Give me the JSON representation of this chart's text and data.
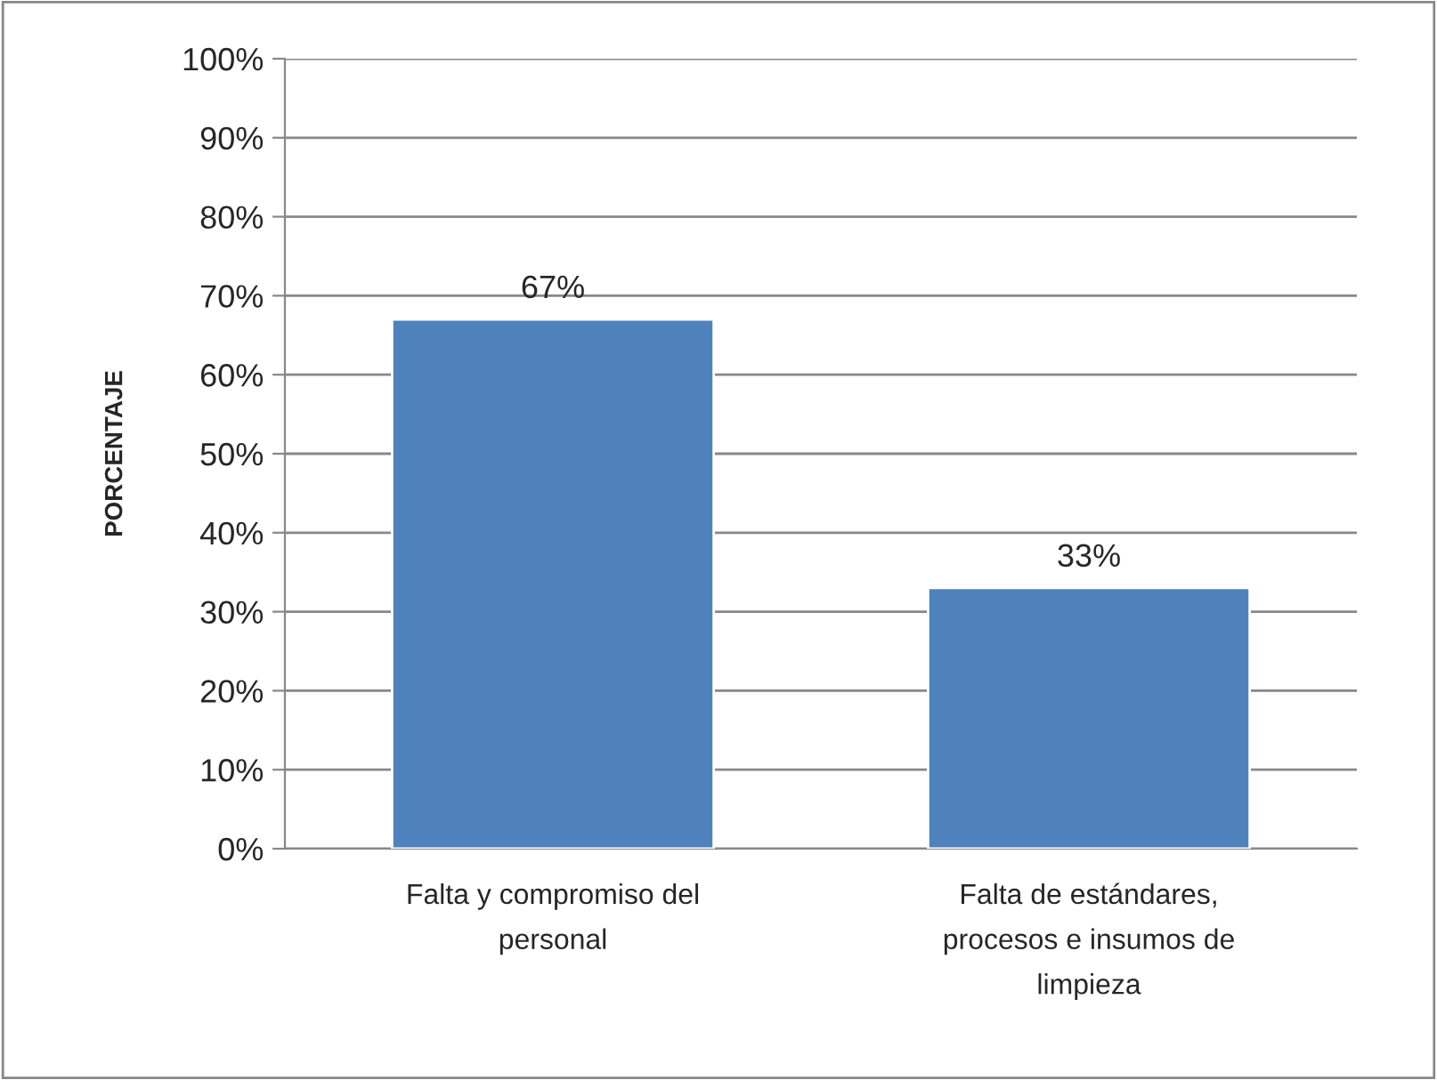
{
  "chart_data": {
    "type": "bar",
    "ylabel": "PORCENTAJE",
    "categories": [
      "Falta y compromiso del\npersonal",
      "Falta de estándares,\nprocesos e insumos de\nlimpieza"
    ],
    "values": [
      67,
      33
    ],
    "color": "#4f81bd",
    "data_labels": true,
    "value_labels": [
      "67%",
      "33%"
    ],
    "ylim": [
      0,
      100
    ],
    "yticks": [
      {
        "value": 0,
        "label": "0%"
      },
      {
        "value": 10,
        "label": "10%"
      },
      {
        "value": 20,
        "label": "20%"
      },
      {
        "value": 30,
        "label": "30%"
      },
      {
        "value": 40,
        "label": "40%"
      },
      {
        "value": 50,
        "label": "50%"
      },
      {
        "value": 60,
        "label": "60%"
      },
      {
        "value": 70,
        "label": "70%"
      },
      {
        "value": 80,
        "label": "80%"
      },
      {
        "value": 90,
        "label": "90%"
      },
      {
        "value": 100,
        "label": "100%"
      }
    ],
    "grid": "y",
    "legend": false
  }
}
